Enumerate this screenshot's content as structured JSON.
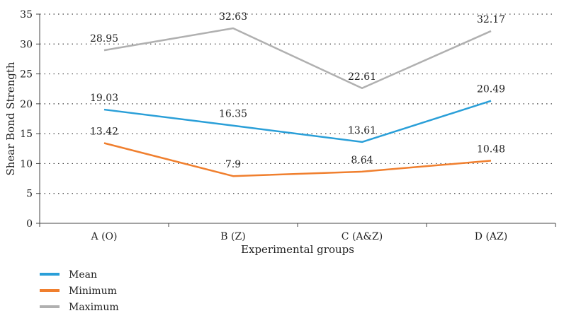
{
  "chart_data": {
    "type": "line",
    "categories": [
      "A (O)",
      "B (Z)",
      "C (A&Z)",
      "D (AZ)"
    ],
    "series": [
      {
        "name": "Mean",
        "values": [
          19.03,
          16.35,
          13.61,
          20.49
        ],
        "color": "#2a9fd8"
      },
      {
        "name": "Minimum",
        "values": [
          13.42,
          7.9,
          8.64,
          10.48
        ],
        "color": "#f07f2e"
      },
      {
        "name": "Maximum",
        "values": [
          28.95,
          32.63,
          22.61,
          32.17
        ],
        "color": "#b0b0b0"
      }
    ],
    "xlabel": "Experimental groups",
    "ylabel": "Shear Bond Strength",
    "ylim": [
      0,
      35
    ],
    "yticks": [
      0,
      5,
      10,
      15,
      20,
      25,
      30,
      35
    ],
    "grid": true,
    "legend": "bottom-left"
  }
}
